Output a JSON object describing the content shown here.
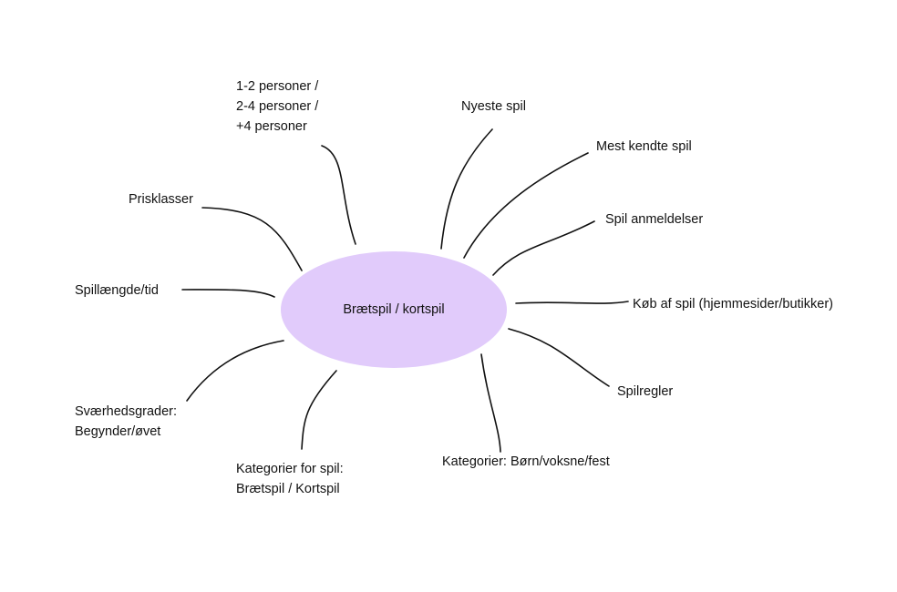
{
  "center": {
    "label": "Brætspil / kortspil",
    "fill": "#e1cbfb"
  },
  "line_color": "#111111",
  "branches": [
    {
      "id": "personer",
      "lines": [
        "1-2 personer /",
        "2-4 personer /",
        "+4 personer"
      ]
    },
    {
      "id": "nyeste",
      "lines": [
        "Nyeste spil"
      ]
    },
    {
      "id": "mest-kendte",
      "lines": [
        "Mest kendte spil"
      ]
    },
    {
      "id": "anmeldelser",
      "lines": [
        "Spil anmeldelser"
      ]
    },
    {
      "id": "koeb",
      "lines": [
        "Køb af spil (hjemmesider/butikker)"
      ]
    },
    {
      "id": "spilregler",
      "lines": [
        "Spilregler"
      ]
    },
    {
      "id": "kategorier-alder",
      "lines": [
        "Kategorier: Børn/voksne/fest"
      ]
    },
    {
      "id": "kategorier-spil",
      "lines": [
        "Kategorier for spil:",
        "Brætspil / Kortspil"
      ]
    },
    {
      "id": "svaerhed",
      "lines": [
        "Sværhedsgrader:",
        "Begynder/øvet"
      ]
    },
    {
      "id": "spillaengde",
      "lines": [
        "Spillængde/tid"
      ]
    },
    {
      "id": "prisklasser",
      "lines": [
        "Prisklasser"
      ]
    }
  ]
}
